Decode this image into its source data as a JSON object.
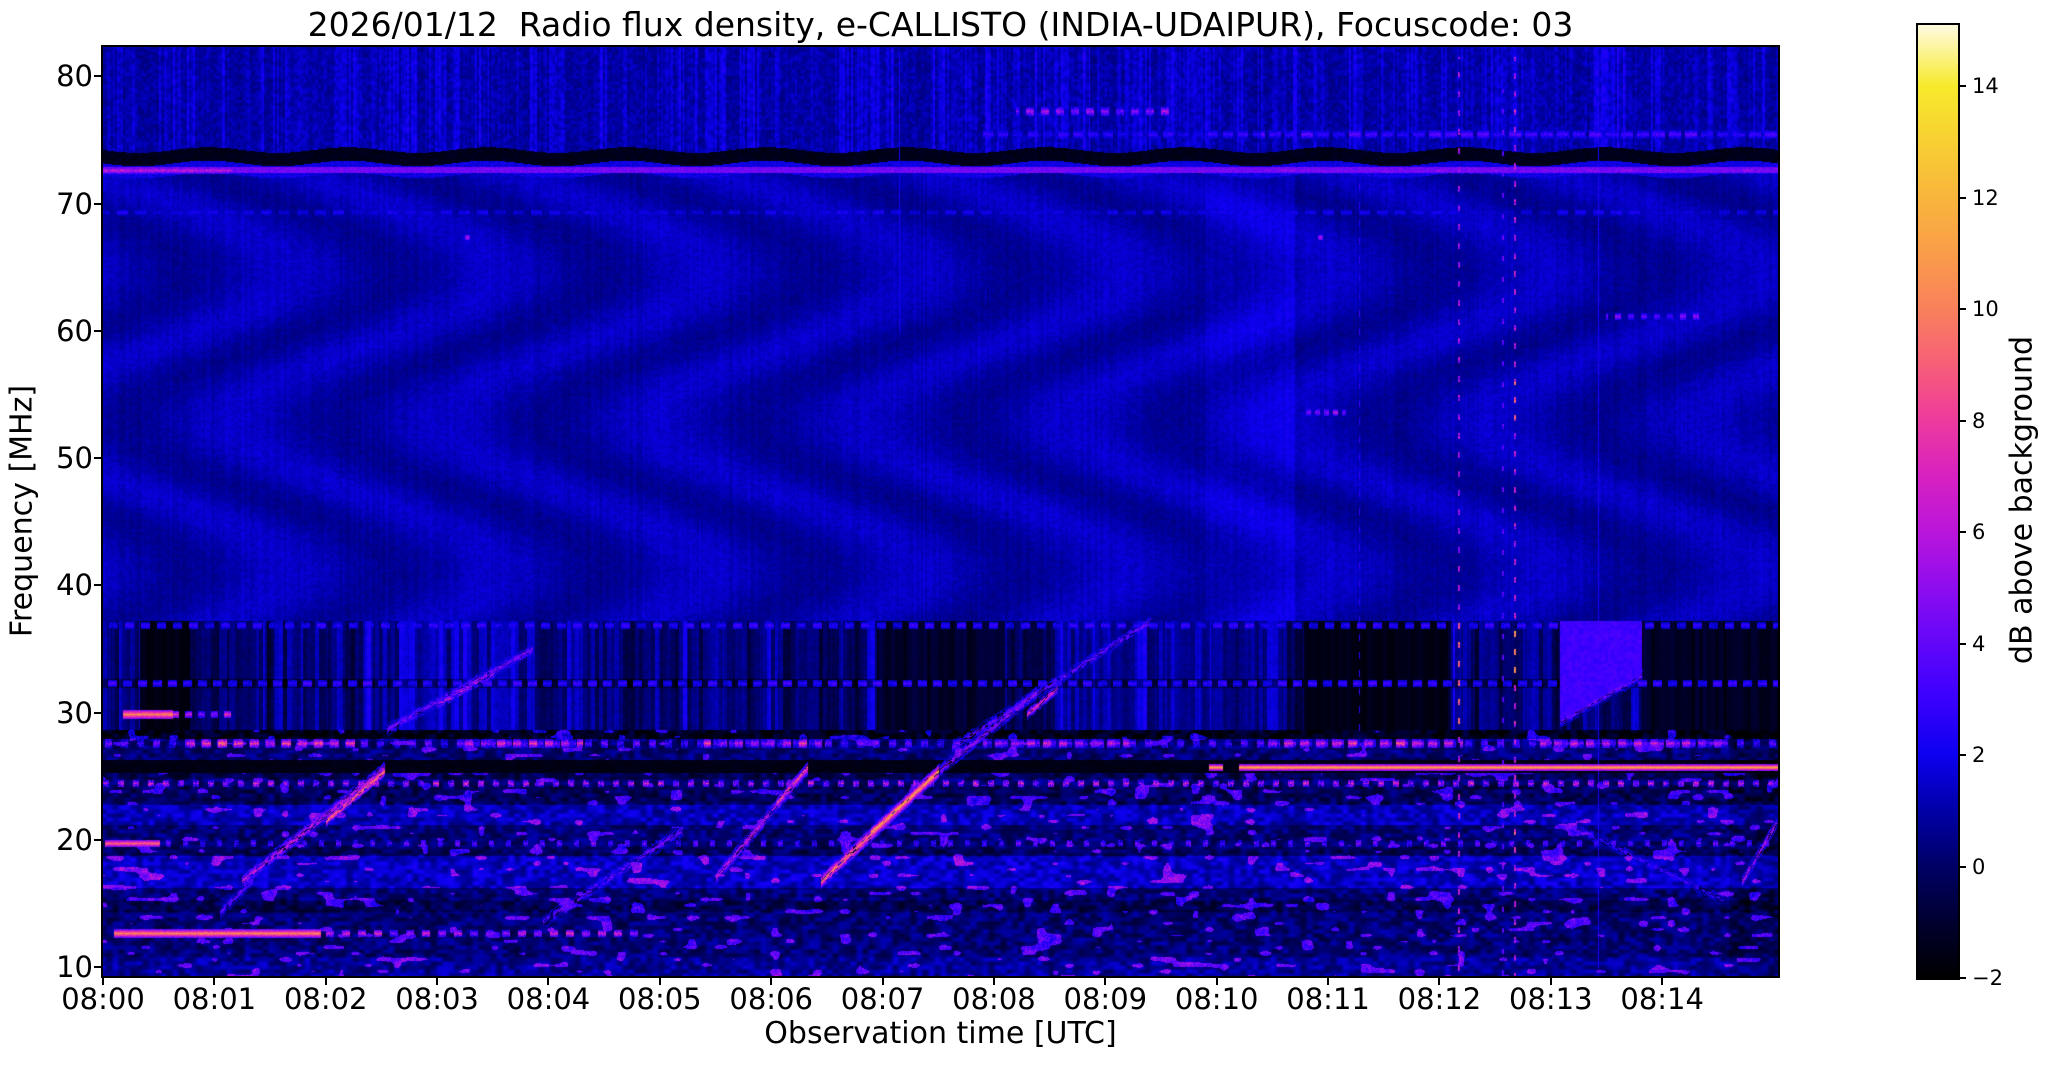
{
  "chart_data": {
    "type": "heatmap",
    "title": "2026/01/12  Radio flux density, e-CALLISTO (INDIA-UDAIPUR), Focuscode: 03",
    "xlabel": "Observation time [UTC]",
    "ylabel": "Frequency [MHz]",
    "x_ticks": [
      "08:00",
      "08:01",
      "08:02",
      "08:03",
      "08:04",
      "08:05",
      "08:06",
      "08:07",
      "08:08",
      "08:09",
      "08:10",
      "08:11",
      "08:12",
      "08:13",
      "08:14"
    ],
    "y_ticks": [
      10,
      20,
      30,
      40,
      50,
      60,
      70,
      80
    ],
    "x_range_minutes": [
      0,
      15.04
    ],
    "y_range_mhz": [
      9.3,
      82.3
    ],
    "grid": false,
    "colorbar": {
      "label": "dB above background",
      "ticks": [
        14,
        12,
        10,
        8,
        6,
        4,
        2,
        0,
        -2
      ],
      "range": [
        -2,
        15.1
      ],
      "stops": [
        [
          -2,
          "#000000"
        ],
        [
          -1,
          "#000030"
        ],
        [
          0,
          "#000066"
        ],
        [
          1,
          "#0000a8"
        ],
        [
          2,
          "#0d00f0"
        ],
        [
          3,
          "#3b00ff"
        ],
        [
          4,
          "#6307fa"
        ],
        [
          5,
          "#8f0def"
        ],
        [
          6,
          "#ba16dc"
        ],
        [
          7,
          "#d822c2"
        ],
        [
          8,
          "#ee3b9e"
        ],
        [
          9,
          "#f75f79"
        ],
        [
          10,
          "#f9815c"
        ],
        [
          11,
          "#fa9d4a"
        ],
        [
          12,
          "#f9b63d"
        ],
        [
          13,
          "#f8d033"
        ],
        [
          14,
          "#f7eb2c"
        ],
        [
          15.1,
          "#fffbe2"
        ]
      ]
    },
    "spectrogram": {
      "bands": {
        "top_noise": {
          "f": [
            74.2,
            82.3
          ],
          "base": 0.55,
          "streak": 1.6,
          "cell": 1.1
        },
        "black_line": {
          "f": [
            73.15,
            74.2
          ],
          "v": -1.7,
          "amp": 0.5,
          "wiggle": 0.22
        },
        "bright_line": {
          "f": [
            72.2,
            73.15
          ],
          "center": 72.62,
          "core_hw": 0.24,
          "core_v": 3.7,
          "edge_v": 1.9
        },
        "smooth": {
          "f": [
            37.2,
            72.2
          ],
          "base": 0.62,
          "ripple_amp": 0.42,
          "ripple_kx": 0.03,
          "ripple_ky": 0.021,
          "ripple_mod": 4.0,
          "bright_col_t": [
            9.9,
            10.7
          ],
          "bright_col_dv": 0.45
        },
        "stripes": {
          "f": [
            28.65,
            37.2
          ],
          "base": -1.1,
          "amp": 3.4,
          "rows": [
            {
              "f": [
                31.95,
                32.65
              ],
              "dv": -1.3
            }
          ],
          "bright_t": [
            [
              2.35,
              4.35
            ],
            [
              8.6,
              10.55
            ]
          ],
          "bright_dv": 0.7,
          "dark_t": [
            [
              0.33,
              0.78,
              1.0
            ],
            [
              6.95,
              8.1,
              0.75
            ],
            [
              10.78,
              12.08,
              1.0
            ],
            [
              13.82,
              15.04,
              0.85
            ]
          ],
          "wedge": {
            "t": [
              13.08,
              13.82
            ],
            "f0": 29.3,
            "slope": 5.0,
            "v": 2.7
          }
        },
        "low": {
          "f": [
            9.3,
            28.65
          ],
          "base": -0.85,
          "amp": 2.1,
          "blob_th": 0.8,
          "blob_v": 2.3,
          "rows": [
            {
              "f": [
                27.95,
                28.65
              ],
              "dv": -1.6
            },
            {
              "f": [
                25.25,
                26.3
              ],
              "set": -1.75
            },
            {
              "f": [
                24.75,
                25.25
              ],
              "dv": -0.6
            },
            {
              "f": [
                22.8,
                24.3
              ],
              "dv": -0.45
            },
            {
              "f": [
                21.2,
                22.7
              ],
              "dv": 1.0
            },
            {
              "f": [
                18.8,
                19.45
              ],
              "dv": -0.4
            },
            {
              "f": [
                16.2,
                18.7
              ],
              "dv": 1.15
            },
            {
              "f": [
                14.3,
                15.3
              ],
              "dv": -0.55
            },
            {
              "f": [
                9.3,
                10.8
              ],
              "dv": 0.55
            }
          ],
          "right_dark": {
            "t": 14.6,
            "dv": -0.5
          }
        }
      },
      "hlines": [
        {
          "f": 77.3,
          "hw": 0.25,
          "t": [
            8.2,
            9.6
          ],
          "v": 5.0,
          "jit": 1.3,
          "dash": [
            8,
            7
          ]
        },
        {
          "f": 75.5,
          "hw": 0.25,
          "t": [
            7.9,
            10.4
          ],
          "v": 2.7,
          "jit": 0.7,
          "dash": [
            10,
            5
          ]
        },
        {
          "f": 75.5,
          "hw": 0.25,
          "t": [
            10.4,
            15.04
          ],
          "v": 3.3,
          "jit": 0.8,
          "dash": [
            12,
            4
          ]
        },
        {
          "f": 72.62,
          "hw": 0.2,
          "t": [
            0,
            1.15
          ],
          "v": 6.3,
          "jit": 1.4
        },
        {
          "f": 72.62,
          "hw": 0.18,
          "t": [
            10.4,
            14.9
          ],
          "v": 4.3,
          "jit": 1.0,
          "dash": [
            14,
            3
          ]
        },
        {
          "f": 69.3,
          "hw": 0.2,
          "t": [
            0,
            15.04
          ],
          "v": 2.0,
          "jit": 0.5,
          "dash": [
            11,
            7
          ]
        },
        {
          "f": 61.2,
          "hw": 0.22,
          "t": [
            13.5,
            14.35
          ],
          "v": 4.3,
          "jit": 0.9,
          "dash": [
            6,
            7
          ]
        },
        {
          "f": 53.6,
          "hw": 0.22,
          "t": [
            10.8,
            11.15
          ],
          "v": 5.0,
          "jit": 1.0,
          "dash": [
            5,
            4
          ]
        },
        {
          "f": 36.9,
          "hw": 0.22,
          "t": [
            0,
            15.04
          ],
          "v": 2.7,
          "jit": 0.7,
          "dash": [
            9,
            7
          ]
        },
        {
          "f": 32.3,
          "hw": 0.22,
          "t": [
            0,
            15.04
          ],
          "v": 2.9,
          "jit": 0.8,
          "dash": [
            9,
            6
          ]
        },
        {
          "f": 29.85,
          "hw": 0.28,
          "t": [
            0.18,
            0.62
          ],
          "v": 10.2,
          "jit": 0.8
        },
        {
          "f": 29.85,
          "hw": 0.22,
          "t": [
            0.62,
            1.15
          ],
          "v": 6.0,
          "jit": 1.5,
          "dash": [
            7,
            6
          ]
        },
        {
          "f": 27.6,
          "hw": 0.24,
          "t": [
            0,
            15.04
          ],
          "v": 3.6,
          "jit": 1.6,
          "dash": [
            7,
            9
          ]
        },
        {
          "f": 27.6,
          "hw": 0.24,
          "t": [
            0.75,
            2.25
          ],
          "v": 7.8,
          "jit": 1.8,
          "dash": [
            9,
            7
          ]
        },
        {
          "f": 27.6,
          "hw": 0.24,
          "t": [
            3.2,
            4.3
          ],
          "v": 6.3,
          "jit": 1.6,
          "dash": [
            8,
            8
          ]
        },
        {
          "f": 27.6,
          "hw": 0.24,
          "t": [
            5.4,
            6.45
          ],
          "v": 6.6,
          "jit": 1.6,
          "dash": [
            8,
            8
          ]
        },
        {
          "f": 27.6,
          "hw": 0.24,
          "t": [
            7.9,
            9.2
          ],
          "v": 6.3,
          "jit": 1.5,
          "dash": [
            8,
            8
          ]
        },
        {
          "f": 27.6,
          "hw": 0.24,
          "t": [
            10.45,
            12.2
          ],
          "v": 7.0,
          "jit": 1.6,
          "dash": [
            9,
            7
          ]
        },
        {
          "f": 27.6,
          "hw": 0.24,
          "t": [
            12.9,
            14.6
          ],
          "v": 6.4,
          "jit": 1.5,
          "dash": [
            8,
            8
          ]
        },
        {
          "f": 25.75,
          "hw": 0.18,
          "t": [
            9.93,
            15.04
          ],
          "v": 11.5,
          "jit": 0.6,
          "gaps": [
            [
              10.06,
              10.2
            ]
          ]
        },
        {
          "f": 24.5,
          "hw": 0.2,
          "t": [
            0,
            15.04
          ],
          "v": 5.6,
          "jit": 2.4,
          "dash": [
            6,
            9
          ]
        },
        {
          "f": 19.75,
          "hw": 0.22,
          "t": [
            0.02,
            0.5
          ],
          "v": 9.3,
          "jit": 0.9
        },
        {
          "f": 19.75,
          "hw": 0.22,
          "t": [
            0.5,
            15.04
          ],
          "v": 3.6,
          "jit": 1.8,
          "dash": [
            5,
            12
          ]
        },
        {
          "f": 12.7,
          "hw": 0.24,
          "t": [
            0.1,
            1.95
          ],
          "v": 10.3,
          "jit": 0.8
        },
        {
          "f": 12.7,
          "hw": 0.22,
          "t": [
            1.95,
            4.85
          ],
          "v": 5.8,
          "jit": 1.6,
          "dash": [
            8,
            8
          ]
        }
      ],
      "bursts": [
        {
          "t": [
            1.05,
            1.35
          ],
          "f": [
            14.3,
            16.9
          ],
          "w": 0.45,
          "v": 4.0,
          "p": 0.7
        },
        {
          "t": [
            1.25,
            2.52
          ],
          "f": [
            16.8,
            25.6
          ],
          "w": 0.5,
          "v": 6.5,
          "p": 0.72
        },
        {
          "t": [
            2.0,
            2.52
          ],
          "f": [
            21.5,
            25.4
          ],
          "w": 0.38,
          "v": 9.6,
          "p": 0.8
        },
        {
          "t": [
            2.55,
            3.85
          ],
          "f": [
            28.7,
            35.0
          ],
          "w": 0.45,
          "v": 4.6,
          "p": 0.7
        },
        {
          "t": [
            3.0,
            3.5
          ],
          "f": [
            30.6,
            33.1
          ],
          "w": 0.35,
          "v": 6.6,
          "p": 0.6
        },
        {
          "t": [
            3.95,
            5.2
          ],
          "f": [
            13.6,
            20.8
          ],
          "w": 0.5,
          "v": 4.2,
          "p": 0.55
        },
        {
          "t": [
            5.5,
            6.32
          ],
          "f": [
            17.1,
            25.6
          ],
          "w": 0.5,
          "v": 6.4,
          "p": 0.72
        },
        {
          "t": [
            6.05,
            6.32
          ],
          "f": [
            23.0,
            25.7
          ],
          "w": 0.38,
          "v": 9.0,
          "p": 0.75
        },
        {
          "t": [
            6.45,
            7.5
          ],
          "f": [
            16.8,
            25.4
          ],
          "w": 0.55,
          "v": 9.8,
          "p": 0.85
        },
        {
          "t": [
            6.9,
            7.5
          ],
          "f": [
            20.6,
            25.4
          ],
          "w": 0.4,
          "v": 11.6,
          "p": 0.8
        },
        {
          "t": [
            7.5,
            8.38
          ],
          "f": [
            25.4,
            31.6
          ],
          "w": 0.45,
          "v": 5.2,
          "p": 0.68
        },
        {
          "t": [
            7.62,
            9.4
          ],
          "f": [
            27.3,
            37.2
          ],
          "w": 0.4,
          "v": 4.3,
          "p": 0.62
        },
        {
          "t": [
            8.3,
            8.57
          ],
          "f": [
            29.9,
            31.9
          ],
          "w": 0.35,
          "v": 7.6,
          "p": 0.8
        },
        {
          "t": [
            13.08,
            13.82
          ],
          "f": [
            29.3,
            33.0
          ],
          "w": 0.4,
          "v": 4.3,
          "p": 0.7
        },
        {
          "t": [
            13.1,
            14.55
          ],
          "f": [
            21.5,
            15.3
          ],
          "w": 0.4,
          "v": 3.2,
          "p": 0.55
        },
        {
          "t": [
            14.72,
            15.02
          ],
          "f": [
            16.8,
            21.3
          ],
          "w": 0.45,
          "v": 6.0,
          "p": 0.72
        }
      ],
      "vstreaks": [
        {
          "t": 12.17,
          "w": 2,
          "f": [
            9.3,
            81.5
          ],
          "dash": [
            6,
            13
          ],
          "v": 5.2,
          "jit": 2.2,
          "boost": [
            {
              "f": [
                28.6,
                37
              ],
              "v": 8.6
            },
            {
              "f": [
                9.3,
                24
              ],
              "v": 6.0
            }
          ]
        },
        {
          "t": 12.56,
          "w": 2,
          "f": [
            9.3,
            79
          ],
          "dash": [
            5,
            16
          ],
          "v": 3.6,
          "jit": 1.4,
          "boost": []
        },
        {
          "t": 12.67,
          "w": 2,
          "f": [
            9.3,
            81.5
          ],
          "dash": [
            6,
            12
          ],
          "v": 5.8,
          "jit": 2.6,
          "boost": [
            {
              "f": [
                32.5,
                36.5
              ],
              "v": 10.5
            },
            {
              "f": [
                53,
                56
              ],
              "v": 8.0
            },
            {
              "f": [
                19,
                21
              ],
              "v": 8.0
            }
          ]
        },
        {
          "t": 11.28,
          "w": 1,
          "f": [
            28,
            72
          ],
          "dash": [
            7,
            11
          ],
          "v": 2.6,
          "jit": 0.8,
          "boost": []
        },
        {
          "t": 13.42,
          "w": 1,
          "f": [
            10,
            78
          ],
          "dash": [
            999,
            1
          ],
          "v": 2.3,
          "jit": 0.5,
          "boost": []
        },
        {
          "t": 7.15,
          "w": 1,
          "f": [
            60,
            82
          ],
          "dash": [
            999,
            1
          ],
          "v": 2.2,
          "jit": 0.5,
          "boost": []
        }
      ],
      "dots": [
        {
          "t": 3.27,
          "f": 67.4,
          "v": 5.5
        },
        {
          "t": 10.93,
          "f": 67.4,
          "v": 5.5
        }
      ]
    }
  }
}
